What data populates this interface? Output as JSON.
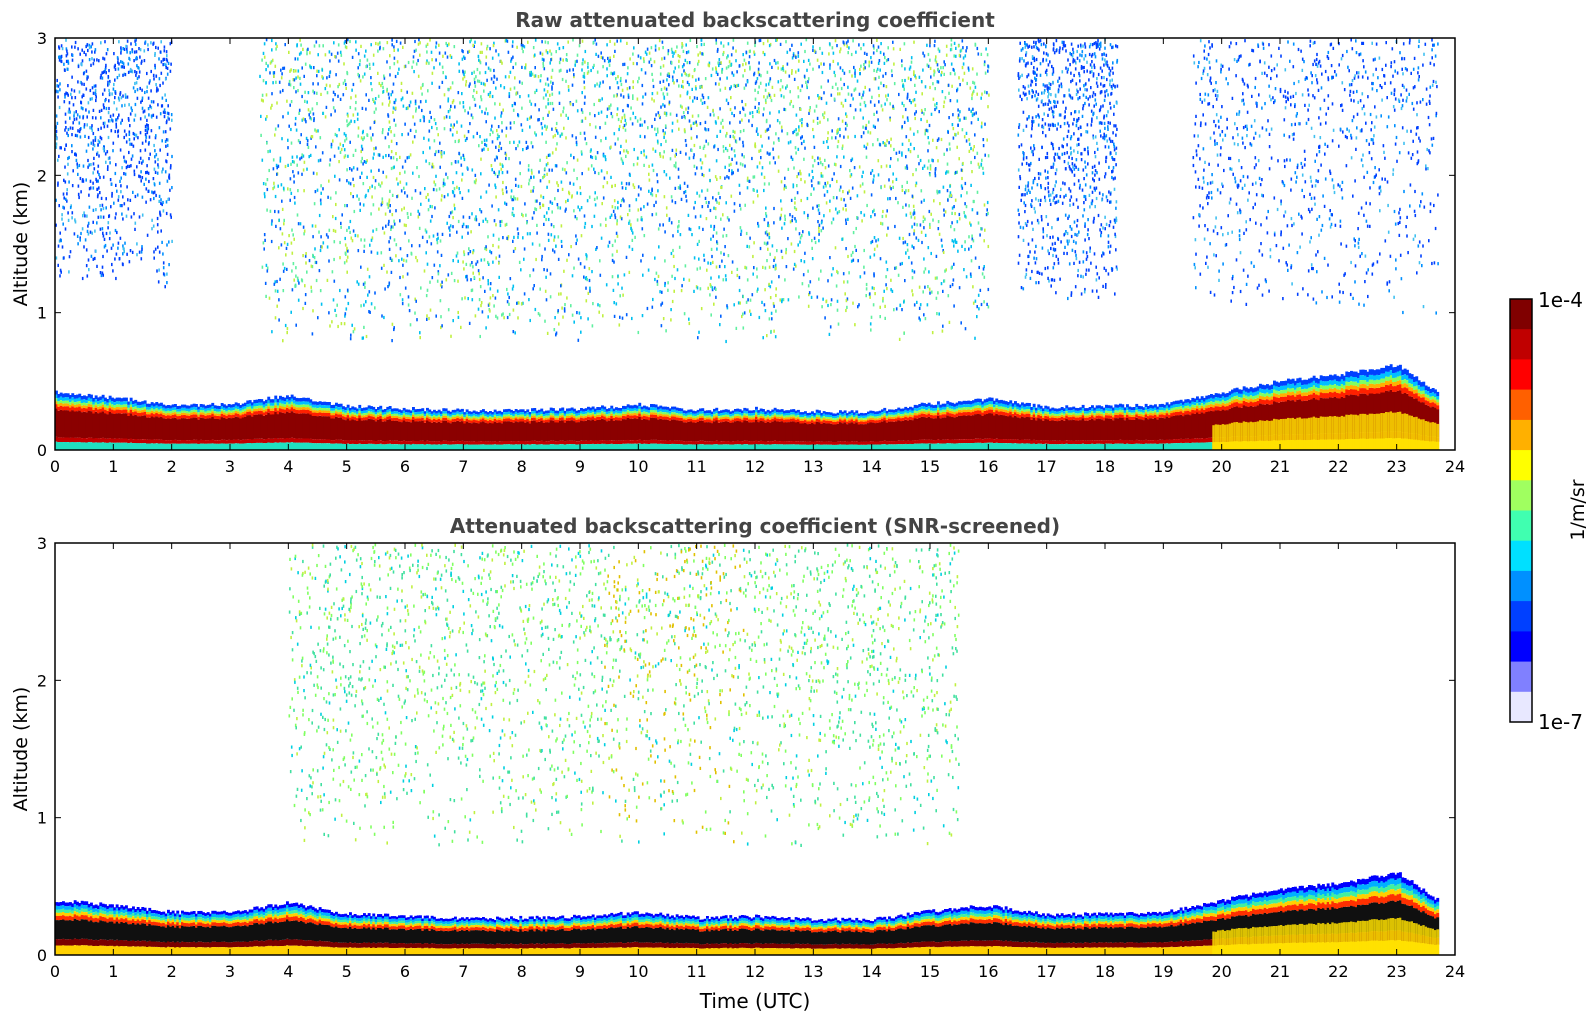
{
  "chart_data": [
    {
      "type": "heatmap",
      "title": "Raw attenuated backscattering coefficient",
      "xlabel": "",
      "ylabel": "Altitude (km)",
      "xlim": [
        0,
        24
      ],
      "ylim": [
        0,
        3
      ],
      "x_ticks": [
        "0",
        "1",
        "2",
        "3",
        "4",
        "5",
        "6",
        "7",
        "8",
        "9",
        "10",
        "11",
        "12",
        "13",
        "14",
        "15",
        "16",
        "17",
        "18",
        "19",
        "20",
        "21",
        "22",
        "23",
        "24"
      ],
      "y_ticks": [
        "0",
        "1",
        "2",
        "3"
      ],
      "data_end_hour": 23.7,
      "color_scale": "log",
      "colormap": "jet",
      "boundary_layer_top_km": [
        [
          0,
          0.42
        ],
        [
          1,
          0.38
        ],
        [
          2,
          0.33
        ],
        [
          3,
          0.33
        ],
        [
          4,
          0.4
        ],
        [
          5,
          0.32
        ],
        [
          6,
          0.3
        ],
        [
          7,
          0.29
        ],
        [
          8,
          0.29
        ],
        [
          9,
          0.3
        ],
        [
          10,
          0.33
        ],
        [
          11,
          0.29
        ],
        [
          12,
          0.3
        ],
        [
          13,
          0.28
        ],
        [
          14,
          0.28
        ],
        [
          15,
          0.34
        ],
        [
          16,
          0.37
        ],
        [
          17,
          0.31
        ],
        [
          18,
          0.32
        ],
        [
          19,
          0.33
        ],
        [
          20,
          0.42
        ],
        [
          21,
          0.5
        ],
        [
          22,
          0.55
        ],
        [
          23,
          0.62
        ],
        [
          23.7,
          0.42
        ]
      ],
      "noise_regions": [
        {
          "hours": [
            0,
            2
          ],
          "alt_km": [
            1.2,
            3
          ],
          "level": "low"
        },
        {
          "hours": [
            3.5,
            16
          ],
          "alt_km": [
            0.8,
            3
          ],
          "level": "moderate, peak near 10-11 UTC"
        },
        {
          "hours": [
            16.5,
            18.2
          ],
          "alt_km": [
            1.1,
            3
          ],
          "level": "low"
        },
        {
          "hours": [
            19.5,
            23.7
          ],
          "alt_km": [
            1.0,
            3
          ],
          "level": "low"
        }
      ]
    },
    {
      "type": "heatmap",
      "title": "Attenuated backscattering coefficient (SNR-screened)",
      "xlabel": "Time (UTC)",
      "ylabel": "Altitude (km)",
      "xlim": [
        0,
        24
      ],
      "ylim": [
        0,
        3
      ],
      "x_ticks": [
        "0",
        "1",
        "2",
        "3",
        "4",
        "5",
        "6",
        "7",
        "8",
        "9",
        "10",
        "11",
        "12",
        "13",
        "14",
        "15",
        "16",
        "17",
        "18",
        "19",
        "20",
        "21",
        "22",
        "23",
        "24"
      ],
      "y_ticks": [
        "0",
        "1",
        "2",
        "3"
      ],
      "data_end_hour": 23.7,
      "color_scale": "log",
      "colormap": "jet",
      "boundary_layer_top_km": [
        [
          0,
          0.4
        ],
        [
          1,
          0.36
        ],
        [
          2,
          0.31
        ],
        [
          3,
          0.31
        ],
        [
          4,
          0.38
        ],
        [
          5,
          0.3
        ],
        [
          6,
          0.28
        ],
        [
          7,
          0.27
        ],
        [
          8,
          0.27
        ],
        [
          9,
          0.28
        ],
        [
          10,
          0.31
        ],
        [
          11,
          0.27
        ],
        [
          12,
          0.28
        ],
        [
          13,
          0.26
        ],
        [
          14,
          0.26
        ],
        [
          15,
          0.32
        ],
        [
          16,
          0.36
        ],
        [
          17,
          0.29
        ],
        [
          18,
          0.3
        ],
        [
          19,
          0.31
        ],
        [
          20,
          0.4
        ],
        [
          21,
          0.48
        ],
        [
          22,
          0.52
        ],
        [
          23,
          0.6
        ],
        [
          23.7,
          0.4
        ]
      ],
      "noise_regions": [
        {
          "hours": [
            4,
            15.5
          ],
          "alt_km": [
            0.8,
            3
          ],
          "level": "moderate, peak near 10-11 UTC"
        }
      ]
    }
  ],
  "colorbar": {
    "max_label": "1e-4",
    "min_label": "1e-7",
    "unit_label": "1/m/sr",
    "colors": [
      "#800000",
      "#c00000",
      "#ff0000",
      "#ff6000",
      "#ffb000",
      "#ffff00",
      "#a0ff60",
      "#40ffb0",
      "#00e0ff",
      "#0090ff",
      "#0040ff",
      "#0000ff",
      "#8080ff",
      "#e8e8ff"
    ]
  }
}
